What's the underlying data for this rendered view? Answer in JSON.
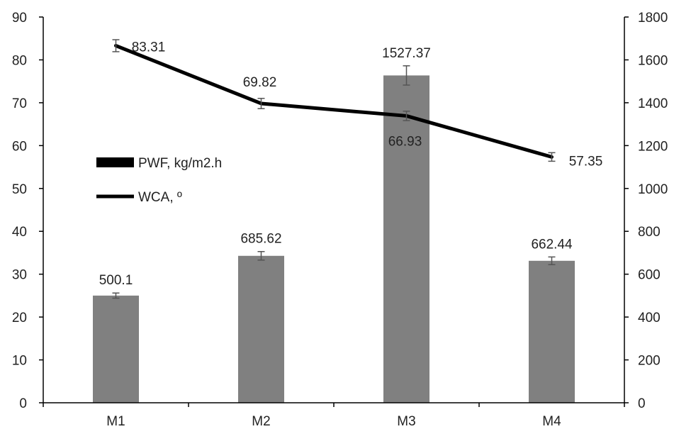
{
  "chart_data": {
    "type": "bar+line",
    "categories": [
      "M1",
      "M2",
      "M3",
      "M4"
    ],
    "series": [
      {
        "name": "PWF, kg/m2.h",
        "type": "bar",
        "axis": "right",
        "values": [
          500.1,
          685.62,
          1527.37,
          662.44
        ],
        "labels": [
          "500.1",
          "685.62",
          "1527.37",
          "662.44"
        ],
        "errors": [
          12,
          20,
          45,
          18
        ],
        "color": "#808080"
      },
      {
        "name": "WCA, º",
        "type": "line",
        "axis": "left",
        "values": [
          83.31,
          69.82,
          66.93,
          57.35
        ],
        "labels": [
          "83.31",
          "69.82",
          "66.93",
          "57.35"
        ],
        "errors": [
          1.4,
          1.2,
          1.1,
          1.0
        ],
        "color": "#000000"
      }
    ],
    "left_axis": {
      "ylim": [
        0,
        90
      ],
      "ticks": [
        "0",
        "10",
        "20",
        "30",
        "40",
        "50",
        "60",
        "70",
        "80",
        "90"
      ]
    },
    "right_axis": {
      "ylim": [
        0,
        1800
      ],
      "ticks": [
        "0",
        "200",
        "400",
        "600",
        "800",
        "1000",
        "1200",
        "1400",
        "1600",
        "1800"
      ]
    },
    "grid": false,
    "legend_position": "left-middle",
    "title": "",
    "xlabel": "",
    "ylabel": ""
  }
}
